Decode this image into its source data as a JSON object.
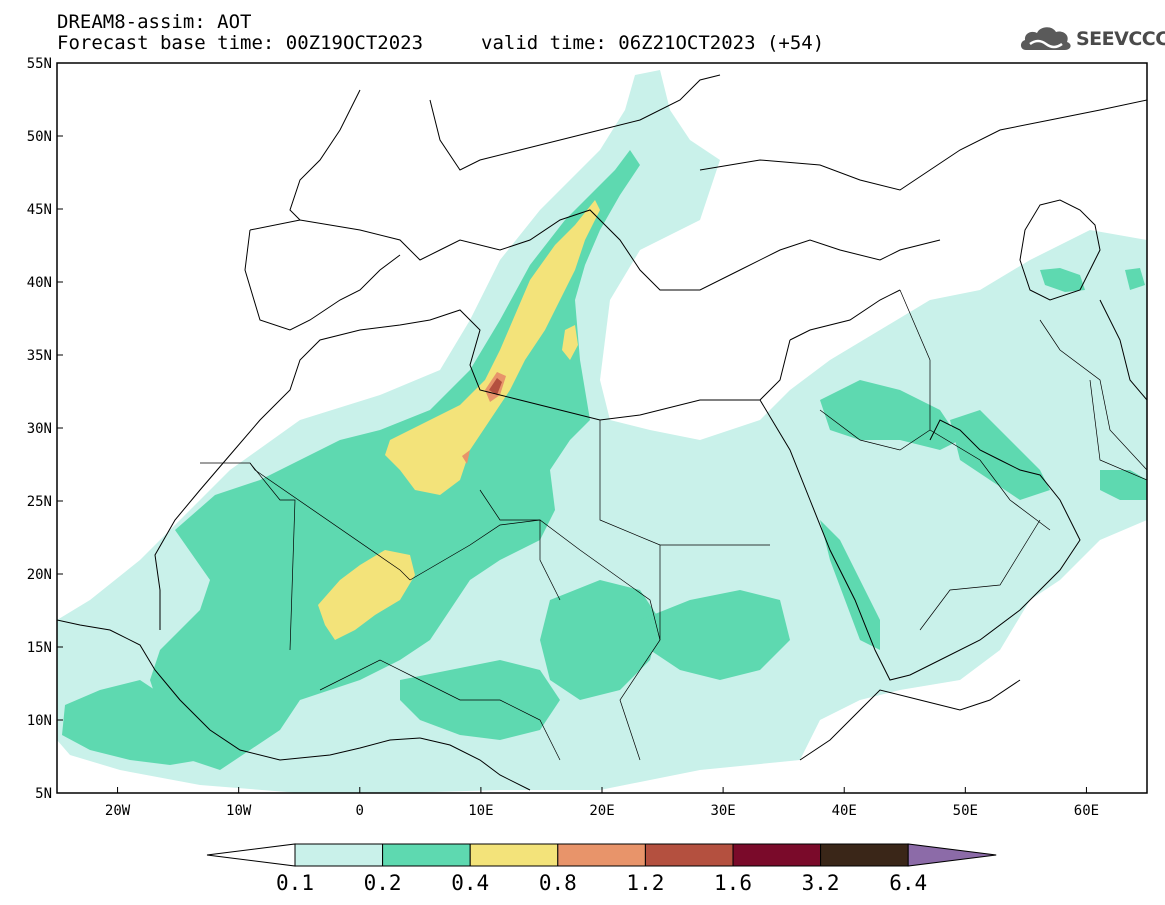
{
  "header": {
    "line1": "DREAM8-assim: AOT",
    "line2": "Forecast base time: 00Z19OCT2023",
    "valid": "valid time: 06Z21OCT2023 (+54)",
    "logo_text": "SEEVCCC",
    "logo_icon": "cloud-logo-icon"
  },
  "map": {
    "lon_range": [
      -25,
      65
    ],
    "lat_range": [
      5,
      55
    ],
    "lat_labels": [
      {
        "lat": 55,
        "text": "55N"
      },
      {
        "lat": 50,
        "text": "50N"
      },
      {
        "lat": 45,
        "text": "45N"
      },
      {
        "lat": 40,
        "text": "40N"
      },
      {
        "lat": 35,
        "text": "35N"
      },
      {
        "lat": 30,
        "text": "30N"
      },
      {
        "lat": 25,
        "text": "25N"
      },
      {
        "lat": 20,
        "text": "20N"
      },
      {
        "lat": 15,
        "text": "15N"
      },
      {
        "lat": 10,
        "text": "10N"
      },
      {
        "lat": 5,
        "text": "5N"
      }
    ],
    "lon_labels": [
      {
        "lon": -20,
        "text": "20W"
      },
      {
        "lon": -10,
        "text": "10W"
      },
      {
        "lon": 0,
        "text": "0"
      },
      {
        "lon": 10,
        "text": "10E"
      },
      {
        "lon": 20,
        "text": "20E"
      },
      {
        "lon": 30,
        "text": "30E"
      },
      {
        "lon": 40,
        "text": "40E"
      },
      {
        "lon": 50,
        "text": "50E"
      },
      {
        "lon": 60,
        "text": "60E"
      }
    ]
  },
  "colorbar": {
    "colors": [
      "#ffffff",
      "#c9f1ea",
      "#5ed9b0",
      "#f3e37a",
      "#e8946a",
      "#b4503f",
      "#7a0a2a",
      "#3a2618",
      "#8c6ba8"
    ],
    "labels": [
      "0.1",
      "0.2",
      "0.4",
      "0.8",
      "1.2",
      "1.6",
      "3.2",
      "6.4"
    ]
  }
}
